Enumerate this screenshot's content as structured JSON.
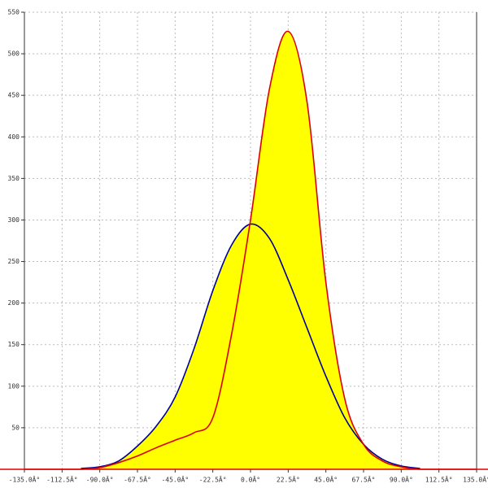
{
  "chart_data": {
    "type": "area",
    "x": [
      -135,
      -123.75,
      -112.5,
      -101.25,
      -90,
      -78.75,
      -67.5,
      -56.25,
      -45,
      -33.75,
      -22.5,
      -11.25,
      0,
      11.25,
      22.5,
      33.75,
      45,
      56.25,
      67.5,
      78.75,
      90,
      101.25,
      112.5,
      123.75,
      135
    ],
    "series": [
      {
        "color": "#000099",
        "fill": "#ffff00",
        "values": [
          null,
          null,
          null,
          1,
          3,
          10,
          28,
          52,
          87,
          145,
          215,
          270,
          295,
          278,
          228,
          170,
          112,
          62,
          30,
          12,
          4,
          1,
          null,
          null,
          null
        ]
      },
      {
        "color": "#dd0000",
        "fill": "#ffff00",
        "values": [
          0,
          0,
          0,
          0,
          2,
          8,
          16,
          26,
          35,
          44,
          62,
          163,
          300,
          457,
          527,
          442,
          225,
          85,
          30,
          10,
          3,
          0,
          0,
          0,
          0
        ]
      }
    ],
    "xlim": [
      -135,
      135
    ],
    "ylim": [
      0,
      550
    ],
    "xticks": [
      {
        "value": -135,
        "label": "-135.0Â°"
      },
      {
        "value": -112.5,
        "label": "-112.5Â°"
      },
      {
        "value": -90,
        "label": "-90.0Â°"
      },
      {
        "value": -67.5,
        "label": "-67.5Â°"
      },
      {
        "value": -45,
        "label": "-45.0Â°"
      },
      {
        "value": -22.5,
        "label": "-22.5Â°"
      },
      {
        "value": 0,
        "label": "0.0Â°"
      },
      {
        "value": 22.5,
        "label": "22.5Â°"
      },
      {
        "value": 45,
        "label": "45.0Â°"
      },
      {
        "value": 67.5,
        "label": "67.5Â°"
      },
      {
        "value": 90,
        "label": "90.0Â°"
      },
      {
        "value": 112.5,
        "label": "112.5Â°"
      },
      {
        "value": 135,
        "label": "135.0Â°"
      }
    ],
    "yticks": [
      50,
      100,
      150,
      200,
      250,
      300,
      350,
      400,
      450,
      500,
      550
    ],
    "grid": true
  }
}
